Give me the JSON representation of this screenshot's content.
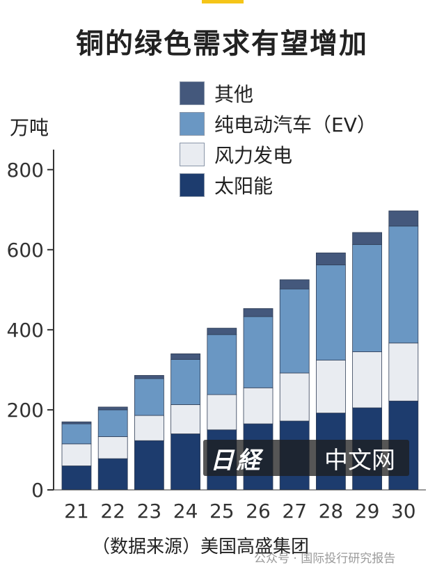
{
  "header": {
    "title": "铜的绿色需求有望增加"
  },
  "chart_data": {
    "type": "bar",
    "stacked": true,
    "unit_label": "万吨",
    "categories": [
      "21",
      "22",
      "23",
      "24",
      "25",
      "26",
      "27",
      "28",
      "29",
      "30"
    ],
    "series": [
      {
        "name": "太阳能",
        "color": "#1d3c6e",
        "values": [
          60,
          78,
          123,
          140,
          150,
          165,
          172,
          192,
          205,
          222
        ]
      },
      {
        "name": "风力发电",
        "color": "#e9ecf1",
        "values": [
          55,
          55,
          63,
          73,
          88,
          90,
          120,
          132,
          140,
          145
        ]
      },
      {
        "name": "纯电动汽车（EV）",
        "color": "#6a97c3",
        "values": [
          50,
          67,
          92,
          113,
          150,
          178,
          210,
          238,
          268,
          292
        ]
      },
      {
        "name": "其他",
        "color": "#44587c",
        "values": [
          5,
          7,
          8,
          14,
          16,
          20,
          23,
          30,
          30,
          38
        ]
      }
    ],
    "ylim": [
      0,
      850
    ],
    "yticks": [
      0,
      200,
      400,
      600,
      800
    ],
    "legend_order": [
      "其他",
      "纯电动汽车（EV）",
      "风力发电",
      "太阳能"
    ],
    "legend_position": "top-right"
  },
  "source_note": "（数据来源）美国高盛集团",
  "watermark": {
    "logo": "日経",
    "text": "中文网"
  },
  "footer_watermark": "公众号 · 国际投行研究报告"
}
